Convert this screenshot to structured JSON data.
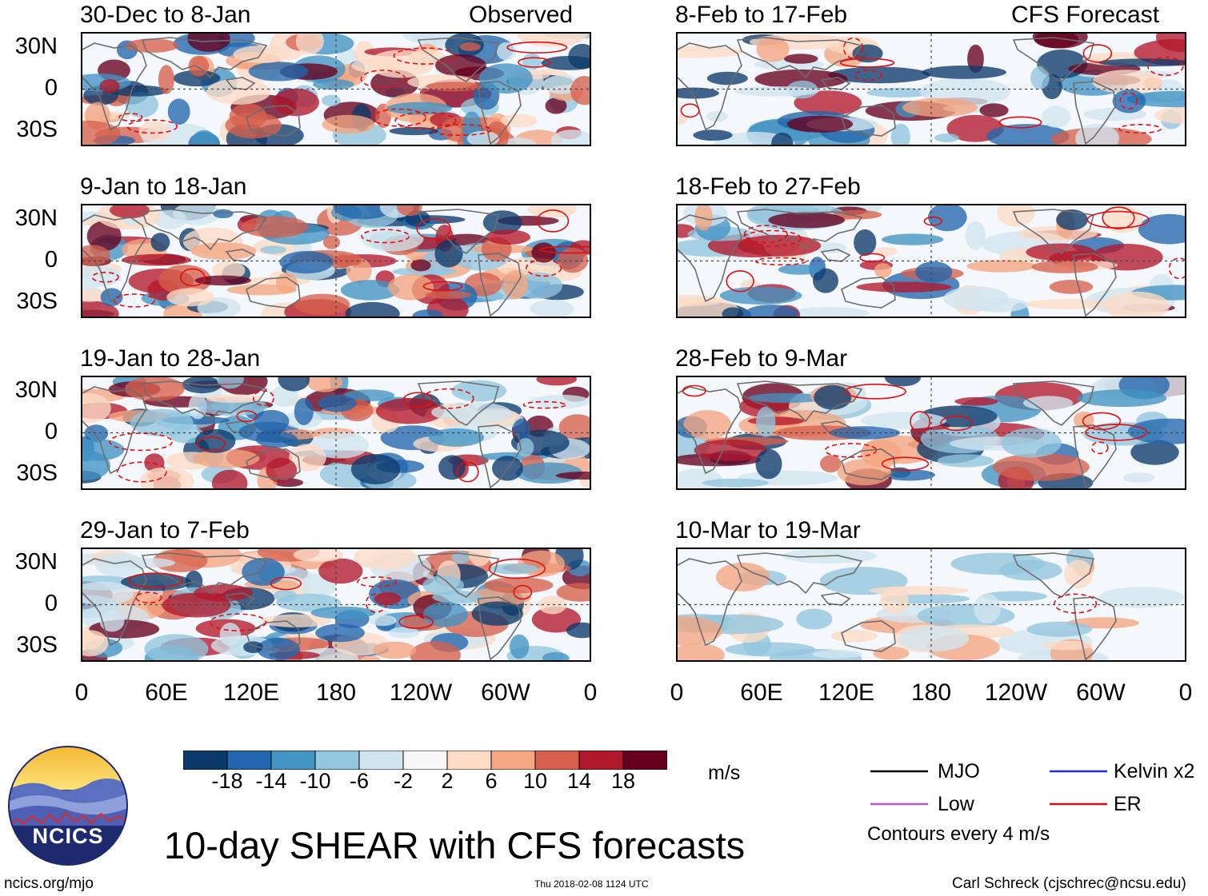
{
  "title": "10-day SHEAR with CFS forecasts",
  "headers": {
    "observed": "Observed",
    "forecast": "CFS Forecast"
  },
  "lat_labels": [
    "30N",
    "0",
    "30S"
  ],
  "lon_labels": [
    "0",
    "60E",
    "120E",
    "180",
    "120W",
    "60W",
    "0"
  ],
  "panels_left": [
    {
      "title": "30-Dec to 8-Jan"
    },
    {
      "title": "9-Jan to 18-Jan"
    },
    {
      "title": "19-Jan to 28-Jan"
    },
    {
      "title": "29-Jan to 7-Feb"
    }
  ],
  "panels_right": [
    {
      "title": "8-Feb to 17-Feb"
    },
    {
      "title": "18-Feb to 27-Feb"
    },
    {
      "title": "28-Feb to 9-Mar"
    },
    {
      "title": "10-Mar to 19-Mar"
    }
  ],
  "colorbar": {
    "labels": [
      "-18",
      "-14",
      "-10",
      "-6",
      "-2",
      "2",
      "6",
      "10",
      "14",
      "18"
    ],
    "colors": [
      "#0b3a6b",
      "#2166ac",
      "#4393c3",
      "#92c5de",
      "#d1e5f0",
      "#f7f7f7",
      "#fddbc7",
      "#f4a582",
      "#d6604d",
      "#b2182b",
      "#67001f"
    ],
    "units": "m/s"
  },
  "legend": {
    "mjo": "MJO",
    "kelvin": "Kelvin x2",
    "low": "Low",
    "er": "ER",
    "contours": "Contours every 4 m/s",
    "colors": {
      "mjo": "#000000",
      "kelvin": "#1a2fd6",
      "low": "#b455d8",
      "er": "#e01010"
    }
  },
  "logo_text": "NCICS",
  "url": "ncics.org/mjo",
  "timestamp": "Thu 2018-02-08 1124 UTC",
  "credit": "Carl Schreck (cjschrec@ncsu.edu)"
}
